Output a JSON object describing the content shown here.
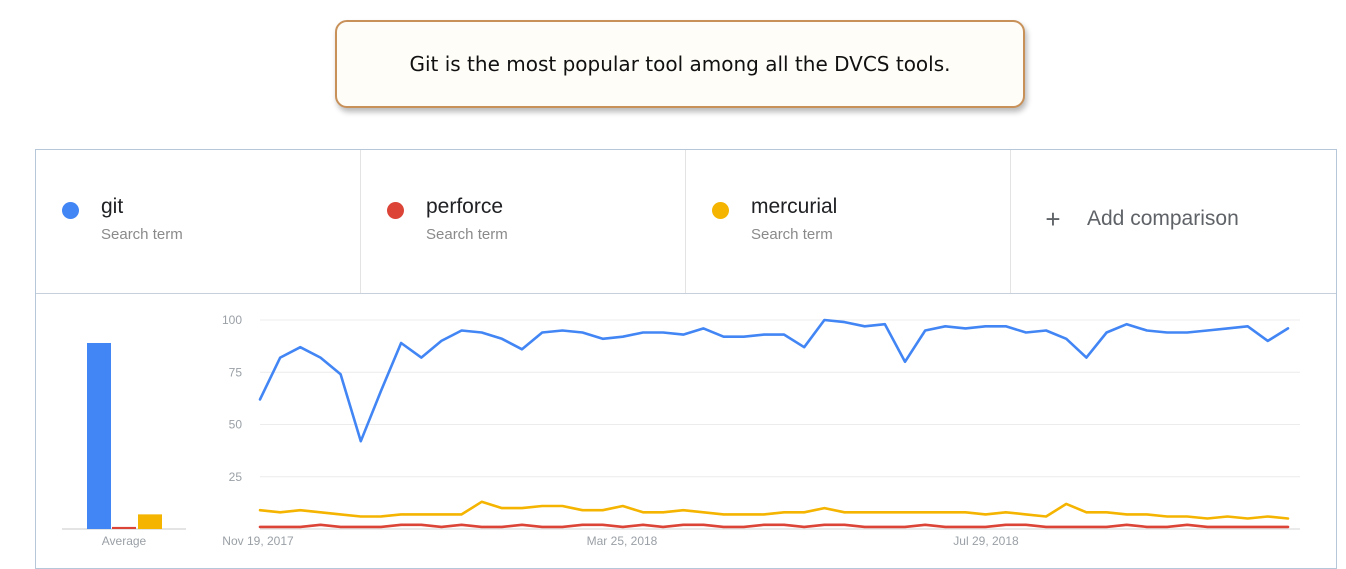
{
  "callout": {
    "text": "Git is the most popular tool among all the DVCS tools."
  },
  "terms": [
    {
      "name": "git",
      "sub": "Search term",
      "color": "#4285f4"
    },
    {
      "name": "perforce",
      "sub": "Search term",
      "color": "#db4437"
    },
    {
      "name": "mercurial",
      "sub": "Search term",
      "color": "#f4b400"
    }
  ],
  "add_comparison": {
    "icon": "plus-icon",
    "label": "Add comparison"
  },
  "chart_data": {
    "type": "line",
    "xlabel": "",
    "ylabel": "",
    "ylim": [
      0,
      100
    ],
    "yticks": [
      "100",
      "75",
      "50",
      "25"
    ],
    "x_tick_labels": [
      "Nov 19, 2017",
      "Mar 25, 2018",
      "Jul 29, 2018"
    ],
    "grid": true,
    "legend": "top",
    "average": {
      "label": "Average",
      "values": [
        {
          "series": "git",
          "value": 89
        },
        {
          "series": "perforce",
          "value": 1
        },
        {
          "series": "mercurial",
          "value": 7
        }
      ]
    },
    "series": [
      {
        "name": "git",
        "color": "#4285f4",
        "values": [
          62,
          82,
          87,
          82,
          74,
          42,
          66,
          89,
          82,
          90,
          95,
          94,
          91,
          86,
          94,
          95,
          94,
          91,
          92,
          94,
          94,
          93,
          96,
          92,
          92,
          93,
          93,
          87,
          100,
          99,
          97,
          98,
          80,
          95,
          97,
          96,
          97,
          97,
          94,
          95,
          91,
          82,
          94,
          98,
          95,
          94,
          94,
          95,
          96,
          97,
          90,
          96
        ]
      },
      {
        "name": "perforce",
        "color": "#db4437",
        "values": [
          1,
          1,
          1,
          2,
          1,
          1,
          1,
          2,
          2,
          1,
          2,
          1,
          1,
          2,
          1,
          1,
          2,
          2,
          1,
          2,
          1,
          2,
          2,
          1,
          1,
          2,
          2,
          1,
          2,
          2,
          1,
          1,
          1,
          2,
          1,
          1,
          1,
          2,
          2,
          1,
          1,
          1,
          1,
          2,
          1,
          1,
          2,
          1,
          1,
          1,
          1,
          1
        ]
      },
      {
        "name": "mercurial",
        "color": "#f4b400",
        "values": [
          9,
          8,
          9,
          8,
          7,
          6,
          6,
          7,
          7,
          7,
          7,
          13,
          10,
          10,
          11,
          11,
          9,
          9,
          11,
          8,
          8,
          9,
          8,
          7,
          7,
          7,
          8,
          8,
          10,
          8,
          8,
          8,
          8,
          8,
          8,
          8,
          7,
          8,
          7,
          6,
          12,
          8,
          8,
          7,
          7,
          6,
          6,
          5,
          6,
          5,
          6,
          5
        ]
      }
    ]
  }
}
